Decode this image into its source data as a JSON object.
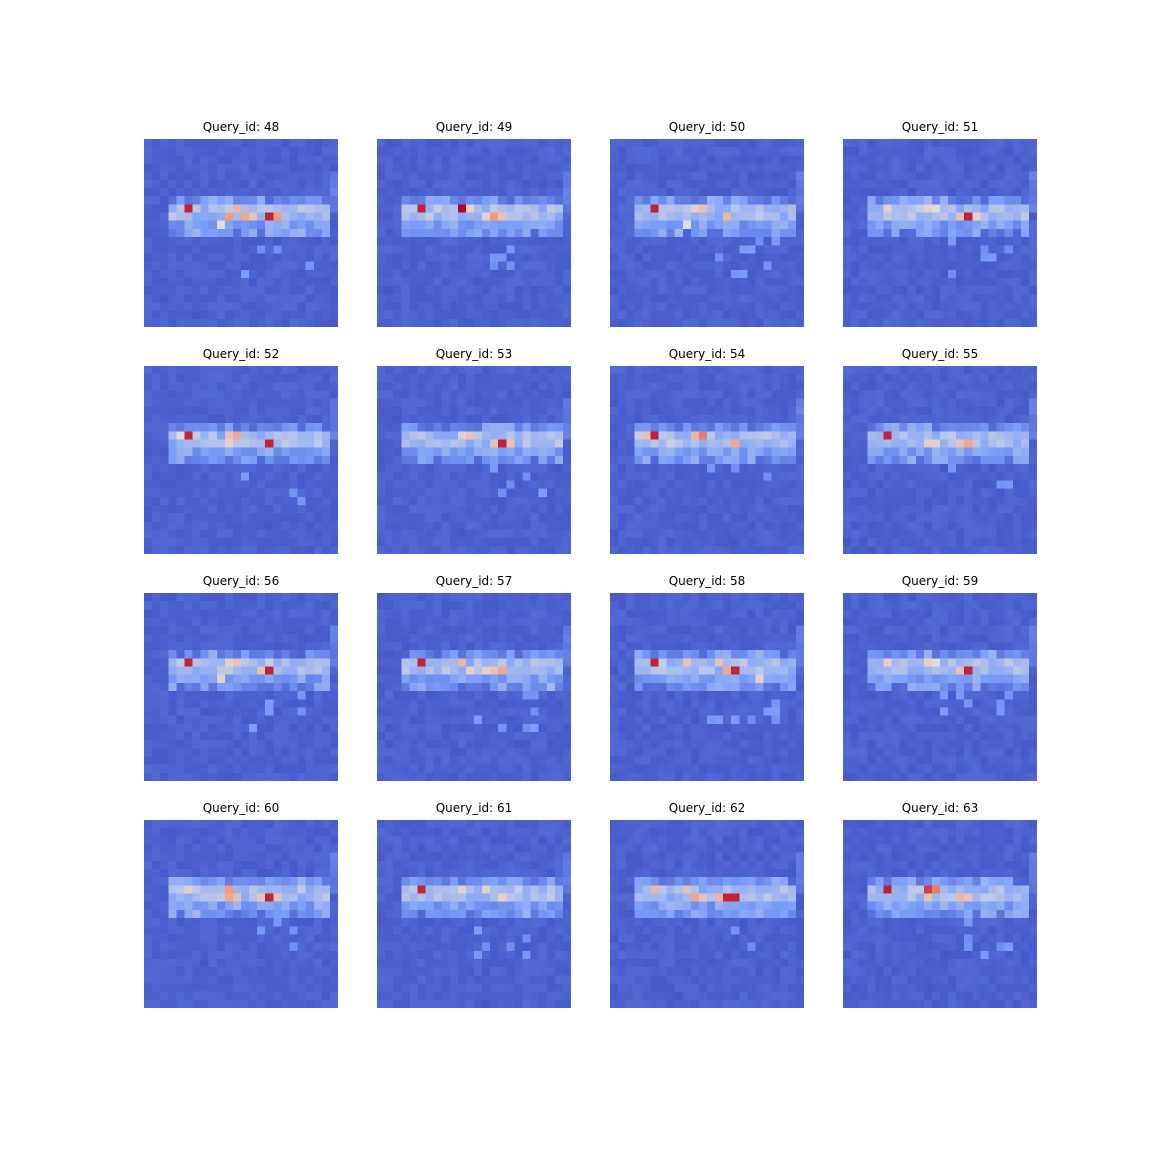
{
  "colors": {
    "background": "#ffffff",
    "colormap": "coolwarm"
  },
  "chart_data": {
    "type": "heatmap",
    "layout": "4x4 grid of attention heatmaps",
    "grid": {
      "rows": 4,
      "cols": 4
    },
    "cells": {
      "cols": 24,
      "rows": 23
    },
    "axes_visible": false,
    "colorbar": false,
    "panels": [
      {
        "title": "Query_id: 48",
        "hot": [
          [
            5,
            8,
            0.95
          ],
          [
            10,
            9,
            0.75
          ],
          [
            11,
            8,
            0.65
          ],
          [
            12,
            9,
            0.7
          ],
          [
            13,
            9,
            0.6
          ],
          [
            15,
            9,
            0.95
          ],
          [
            16,
            9,
            0.75
          ],
          [
            9,
            10,
            0.5
          ]
        ]
      },
      {
        "title": "Query_id: 49",
        "hot": [
          [
            5,
            8,
            0.95
          ],
          [
            10,
            8,
            1.0
          ],
          [
            11,
            8,
            0.55
          ],
          [
            13,
            9,
            0.55
          ],
          [
            14,
            9,
            0.75
          ],
          [
            15,
            9,
            0.6
          ]
        ]
      },
      {
        "title": "Query_id: 50",
        "hot": [
          [
            5,
            8,
            0.95
          ],
          [
            10,
            8,
            0.55
          ],
          [
            11,
            8,
            0.6
          ],
          [
            9,
            10,
            0.5
          ],
          [
            14,
            9,
            0.65
          ]
        ]
      },
      {
        "title": "Query_id: 51",
        "hot": [
          [
            5,
            8,
            0.55
          ],
          [
            10,
            8,
            0.55
          ],
          [
            11,
            8,
            0.5
          ],
          [
            15,
            9,
            0.95
          ],
          [
            14,
            9,
            0.6
          ],
          [
            16,
            9,
            0.55
          ]
        ]
      },
      {
        "title": "Query_id: 52",
        "hot": [
          [
            5,
            8,
            0.95
          ],
          [
            4,
            8,
            0.5
          ],
          [
            10,
            9,
            0.55
          ],
          [
            11,
            8,
            0.7
          ],
          [
            10,
            8,
            0.6
          ],
          [
            15,
            9,
            0.95
          ]
        ]
      },
      {
        "title": "Query_id: 53",
        "hot": [
          [
            10,
            8,
            0.55
          ],
          [
            11,
            8,
            0.6
          ],
          [
            14,
            9,
            0.6
          ],
          [
            15,
            9,
            0.95
          ],
          [
            16,
            9,
            0.6
          ]
        ]
      },
      {
        "title": "Query_id: 54",
        "hot": [
          [
            5,
            8,
            0.95
          ],
          [
            4,
            8,
            0.6
          ],
          [
            10,
            8,
            0.65
          ],
          [
            11,
            8,
            0.8
          ],
          [
            15,
            9,
            0.7
          ]
        ]
      },
      {
        "title": "Query_id: 55",
        "hot": [
          [
            5,
            8,
            0.95
          ],
          [
            10,
            9,
            0.55
          ],
          [
            11,
            9,
            0.55
          ],
          [
            14,
            9,
            0.6
          ],
          [
            15,
            9,
            0.7
          ]
        ]
      },
      {
        "title": "Query_id: 56",
        "hot": [
          [
            5,
            8,
            0.95
          ],
          [
            10,
            8,
            0.55
          ],
          [
            11,
            8,
            0.6
          ],
          [
            9,
            10,
            0.55
          ],
          [
            15,
            9,
            0.95
          ],
          [
            14,
            9,
            0.6
          ]
        ]
      },
      {
        "title": "Query_id: 57",
        "hot": [
          [
            5,
            8,
            0.95
          ],
          [
            10,
            8,
            0.65
          ],
          [
            11,
            9,
            0.55
          ],
          [
            13,
            9,
            0.55
          ],
          [
            14,
            9,
            0.6
          ],
          [
            15,
            9,
            0.7
          ]
        ]
      },
      {
        "title": "Query_id: 58",
        "hot": [
          [
            5,
            8,
            0.95
          ],
          [
            9,
            8,
            0.6
          ],
          [
            13,
            8,
            0.6
          ],
          [
            14,
            9,
            0.7
          ],
          [
            15,
            9,
            0.95
          ],
          [
            18,
            10,
            0.55
          ]
        ]
      },
      {
        "title": "Query_id: 59",
        "hot": [
          [
            5,
            8,
            0.55
          ],
          [
            10,
            8,
            0.55
          ],
          [
            11,
            8,
            0.5
          ],
          [
            15,
            9,
            0.95
          ],
          [
            14,
            9,
            0.6
          ]
        ]
      },
      {
        "title": "Query_id: 60",
        "hot": [
          [
            5,
            8,
            0.55
          ],
          [
            10,
            8,
            0.75
          ],
          [
            10,
            9,
            0.7
          ],
          [
            11,
            9,
            0.6
          ],
          [
            14,
            9,
            0.6
          ],
          [
            15,
            9,
            0.95
          ],
          [
            16,
            9,
            0.6
          ]
        ]
      },
      {
        "title": "Query_id: 61",
        "hot": [
          [
            5,
            8,
            0.95
          ],
          [
            10,
            8,
            0.55
          ],
          [
            13,
            8,
            0.55
          ],
          [
            15,
            9,
            0.55
          ]
        ]
      },
      {
        "title": "Query_id: 62",
        "hot": [
          [
            5,
            8,
            0.65
          ],
          [
            9,
            8,
            0.6
          ],
          [
            10,
            9,
            0.7
          ],
          [
            11,
            9,
            0.6
          ],
          [
            13,
            9,
            0.65
          ],
          [
            14,
            9,
            0.95
          ],
          [
            15,
            9,
            0.95
          ]
        ]
      },
      {
        "title": "Query_id: 63",
        "hot": [
          [
            5,
            8,
            0.95
          ],
          [
            10,
            8,
            0.9
          ],
          [
            11,
            8,
            0.8
          ],
          [
            10,
            9,
            0.6
          ],
          [
            14,
            9,
            0.65
          ],
          [
            15,
            9,
            0.6
          ]
        ]
      }
    ]
  }
}
